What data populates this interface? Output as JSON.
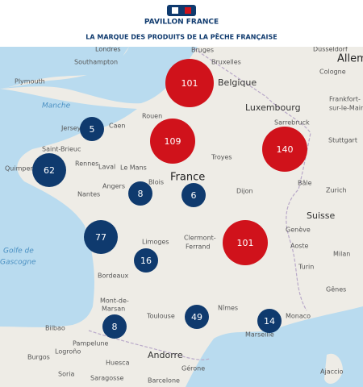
{
  "header": {
    "logo": "PAVILLON FRANCE",
    "tagline": "LA MARQUE DES PRODUITS DE LA PÊCHE FRANÇAISE"
  },
  "map": {
    "places": [
      "Londres",
      "Southampton",
      "Plymouth",
      "Manche",
      "Bruges",
      "Düsseldorf",
      "Bruxelles",
      "Cologne",
      "Allem",
      "Belgique",
      "Luxembourg",
      "Frankfort-",
      "sur-le-Main",
      "Jersey",
      "Caen",
      "Rouen",
      "Sarrebruck",
      "Stuttgart",
      "Saint-Brieuc",
      "Quimper",
      "Rennes",
      "Laval",
      "Le Mans",
      "Troyes",
      "France",
      "Nantes",
      "Angers",
      "Blois",
      "Dijon",
      "Bâle",
      "Zurich",
      "Suisse",
      "Golfe de",
      "Gascogne",
      "Limoges",
      "Clermont-",
      "Ferrand",
      "Genève",
      "Aoste",
      "Milan",
      "Turin",
      "Bordeaux",
      "Mont-de-",
      "Marsan",
      "Toulouse",
      "Nîmes",
      "Gênes",
      "Monaco",
      "Marseille",
      "Bilbao",
      "Pampelune",
      "Burgos",
      "Logroño",
      "Andorre",
      "Huesca",
      "Gérone",
      "Soria",
      "Saragosse",
      "Barcelone",
      "Ajaccio"
    ],
    "clusters": [
      {
        "count": 101,
        "color": "#d0121b"
      },
      {
        "count": 109,
        "color": "#d0121b"
      },
      {
        "count": 140,
        "color": "#d0121b"
      },
      {
        "count": 101,
        "color": "#d0121b"
      },
      {
        "count": 5,
        "color": "#0f3a6e"
      },
      {
        "count": 62,
        "color": "#0f3a6e"
      },
      {
        "count": 8,
        "color": "#0f3a6e"
      },
      {
        "count": 6,
        "color": "#0f3a6e"
      },
      {
        "count": 77,
        "color": "#0f3a6e"
      },
      {
        "count": 16,
        "color": "#0f3a6e"
      },
      {
        "count": 8,
        "color": "#0f3a6e"
      },
      {
        "count": 49,
        "color": "#0f3a6e"
      },
      {
        "count": 14,
        "color": "#0f3a6e"
      }
    ]
  }
}
